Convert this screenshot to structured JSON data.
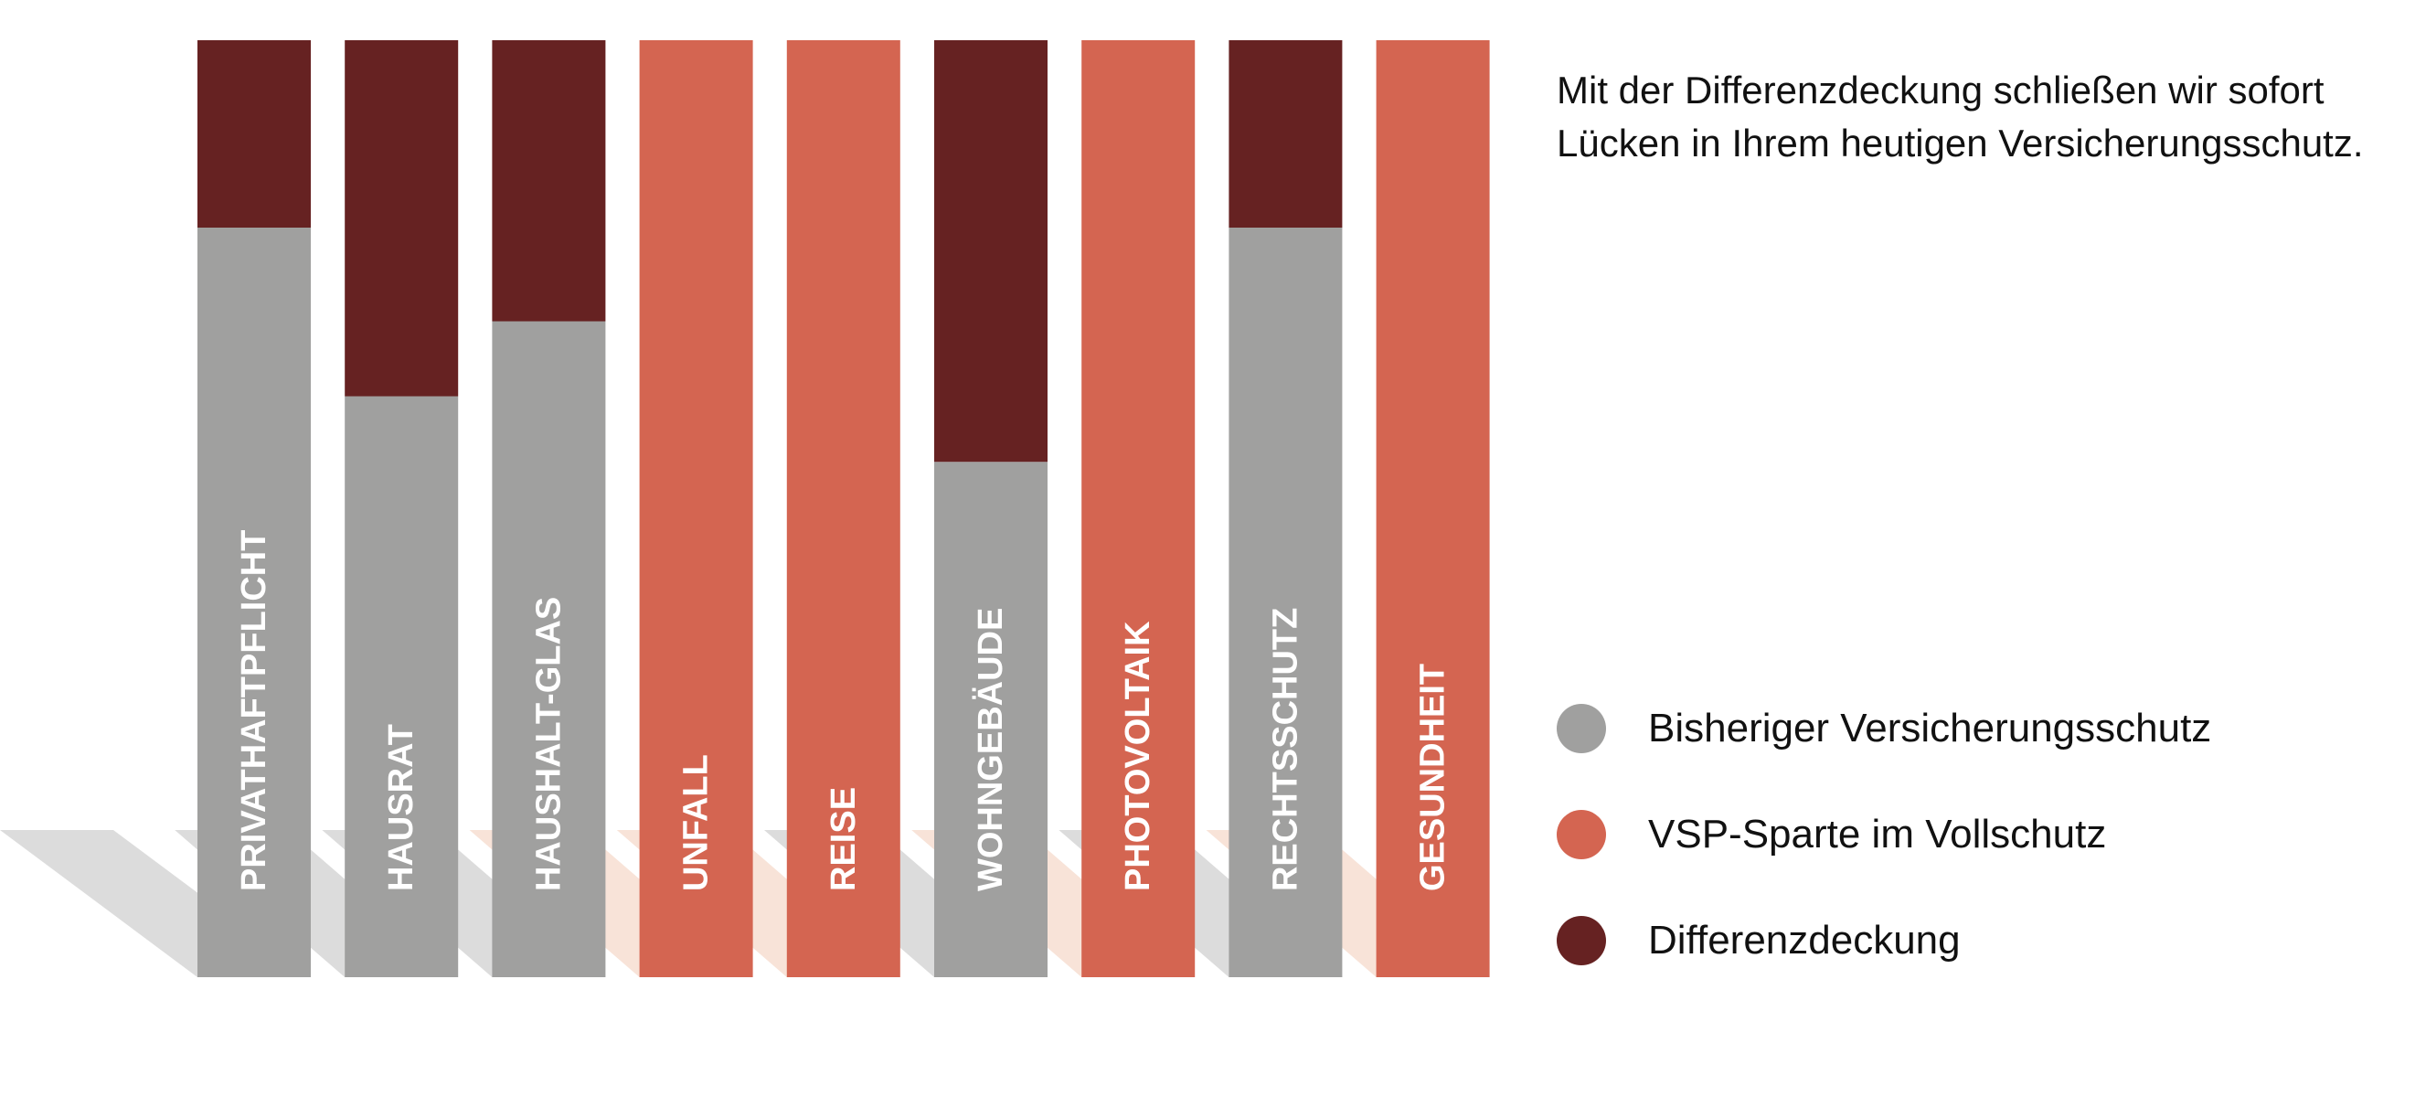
{
  "intro_text": "Mit der Differenzdeckung schließen wir sofort Lücken in Ihrem heutigen Versicherungsschutz.",
  "colors": {
    "bisheriger": "#a0a09f",
    "vollschutz": "#d46551",
    "differenz": "#662222",
    "shadow_grey": "#dcdcdc",
    "shadow_orange": "#f8e3d8",
    "label_text": "#ffffff"
  },
  "legend": [
    {
      "key": "bisheriger",
      "label": "Bisheriger Versicherungsschutz"
    },
    {
      "key": "vollschutz",
      "label": "VSP-Sparte im Vollschutz"
    },
    {
      "key": "differenz",
      "label": "Differenzdeckung"
    }
  ],
  "chart_data": {
    "type": "bar",
    "stacked": true,
    "unit": "percent of full coverage",
    "ylim": [
      0,
      100
    ],
    "categories": [
      "PRIVATHAFTPFLICHT",
      "HAUSRAT",
      "HAUSHALT-GLAS",
      "UNFALL",
      "REISE",
      "WOHNGEBÄUDE",
      "PHOTOVOLTAIK",
      "RECHTSSCHUTZ",
      "GESUNDHEIT"
    ],
    "series": [
      {
        "name": "Bisheriger Versicherungsschutz",
        "key": "bisheriger",
        "values": [
          80,
          62,
          70,
          0,
          0,
          55,
          0,
          80,
          0
        ]
      },
      {
        "name": "VSP-Sparte im Vollschutz",
        "key": "vollschutz",
        "values": [
          0,
          0,
          0,
          100,
          100,
          0,
          100,
          0,
          100
        ]
      },
      {
        "name": "Differenzdeckung",
        "key": "differenz",
        "values": [
          20,
          38,
          30,
          0,
          0,
          45,
          0,
          20,
          0
        ]
      }
    ]
  }
}
